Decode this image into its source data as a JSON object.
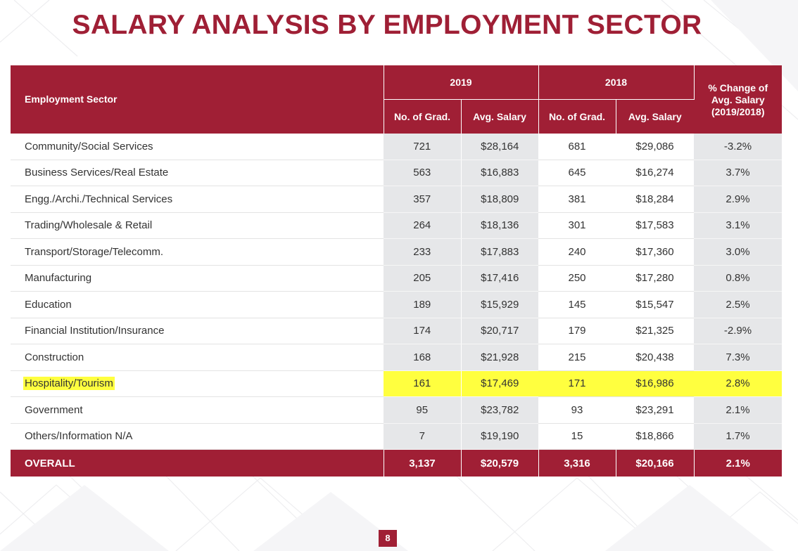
{
  "title": "SALARY ANALYSIS BY EMPLOYMENT SECTOR",
  "colors": {
    "accent": "#a01f35",
    "highlight": "#ffff3f",
    "shade": "#e6e7e9"
  },
  "table": {
    "header": {
      "sector": "Employment Sector",
      "year_2019": "2019",
      "year_2018": "2018",
      "pct_change_line1": "% Change of",
      "pct_change_line2": "Avg. Salary",
      "pct_change_line3": "(2019/2018)",
      "no_grad_2019": "No. of Grad.",
      "avg_salary_2019": "Avg. Salary",
      "no_grad_2018": "No. of Grad.",
      "avg_salary_2018": "Avg. Salary"
    },
    "rows": [
      {
        "sector": "Community/Social Services",
        "grad_2019": "721",
        "salary_2019": "$28,164",
        "grad_2018": "681",
        "salary_2018": "$29,086",
        "change": "-3.2%"
      },
      {
        "sector": "Business Services/Real Estate",
        "grad_2019": "563",
        "salary_2019": "$16,883",
        "grad_2018": "645",
        "salary_2018": "$16,274",
        "change": "3.7%"
      },
      {
        "sector": "Engg./Archi./Technical Services",
        "grad_2019": "357",
        "salary_2019": "$18,809",
        "grad_2018": "381",
        "salary_2018": "$18,284",
        "change": "2.9%"
      },
      {
        "sector": "Trading/Wholesale & Retail",
        "grad_2019": "264",
        "salary_2019": "$18,136",
        "grad_2018": "301",
        "salary_2018": "$17,583",
        "change": "3.1%"
      },
      {
        "sector": "Transport/Storage/Telecomm.",
        "grad_2019": "233",
        "salary_2019": "$17,883",
        "grad_2018": "240",
        "salary_2018": "$17,360",
        "change": "3.0%"
      },
      {
        "sector": "Manufacturing",
        "grad_2019": "205",
        "salary_2019": "$17,416",
        "grad_2018": "250",
        "salary_2018": "$17,280",
        "change": "0.8%"
      },
      {
        "sector": "Education",
        "grad_2019": "189",
        "salary_2019": "$15,929",
        "grad_2018": "145",
        "salary_2018": "$15,547",
        "change": "2.5%"
      },
      {
        "sector": "Financial Institution/Insurance",
        "grad_2019": "174",
        "salary_2019": "$20,717",
        "grad_2018": "179",
        "salary_2018": "$21,325",
        "change": "-2.9%"
      },
      {
        "sector": "Construction",
        "grad_2019": "168",
        "salary_2019": "$21,928",
        "grad_2018": "215",
        "salary_2018": "$20,438",
        "change": "7.3%"
      },
      {
        "sector": "Hospitality/Tourism",
        "grad_2019": "161",
        "salary_2019": "$17,469",
        "grad_2018": "171",
        "salary_2018": "$16,986",
        "change": "2.8%",
        "highlighted": true
      },
      {
        "sector": "Government",
        "grad_2019": "95",
        "salary_2019": "$23,782",
        "grad_2018": "93",
        "salary_2018": "$23,291",
        "change": "2.1%"
      },
      {
        "sector": "Others/Information N/A",
        "grad_2019": "7",
        "salary_2019": "$19,190",
        "grad_2018": "15",
        "salary_2018": "$18,866",
        "change": "1.7%"
      }
    ],
    "overall": {
      "sector": "OVERALL",
      "grad_2019": "3,137",
      "salary_2019": "$20,579",
      "grad_2018": "3,316",
      "salary_2018": "$20,166",
      "change": "2.1%"
    }
  },
  "page_number": "8"
}
